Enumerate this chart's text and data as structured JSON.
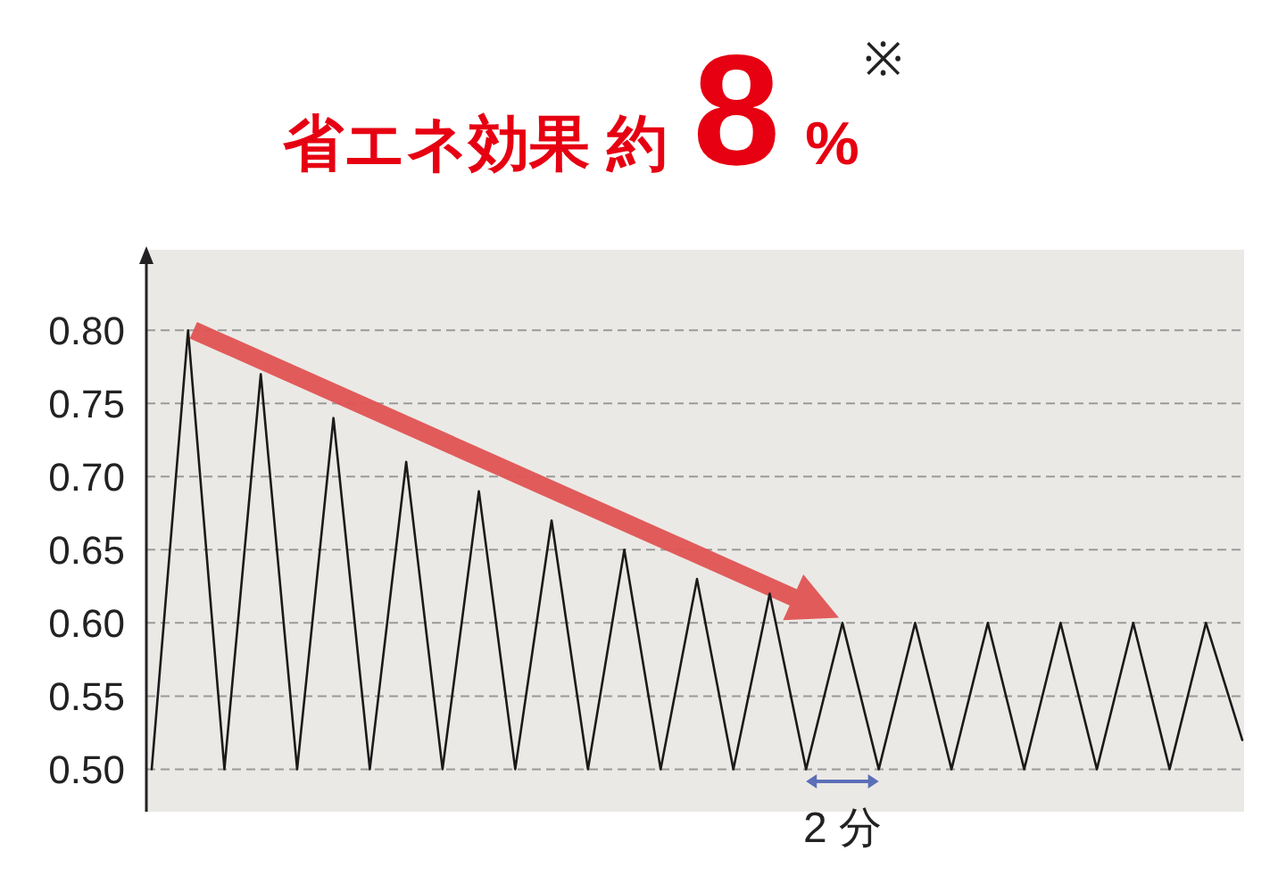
{
  "chart_data": {
    "type": "line",
    "title": "省エネ効果 約8%",
    "annotations": [
      "※",
      "2 分"
    ],
    "categories": [
      null,
      null,
      null,
      null,
      null,
      null,
      null,
      null,
      null,
      null,
      null,
      null,
      null,
      null,
      null,
      null,
      null,
      null,
      null,
      null,
      null,
      null,
      null,
      null,
      null,
      null,
      null,
      null,
      null,
      null,
      null
    ],
    "series": [
      {
        "color": "#1a1a1a",
        "values": [
          0.5,
          0.8,
          0.5,
          0.77,
          0.5,
          0.74,
          0.5,
          0.71,
          0.5,
          0.69,
          0.5,
          0.67,
          0.5,
          0.65,
          0.5,
          0.63,
          0.5,
          0.62,
          0.5,
          0.6,
          0.5,
          0.6,
          0.5,
          0.6,
          0.5,
          0.6,
          0.5,
          0.6,
          0.5,
          0.6,
          0.52
        ]
      }
    ],
    "ylim": [
      0.471,
      0.855
    ],
    "yticks": [
      {
        "value": 0.5,
        "label": "0.50"
      },
      {
        "value": 0.55,
        "label": "0.55"
      },
      {
        "value": 0.6,
        "label": "0.60"
      },
      {
        "value": 0.65,
        "label": "0.65"
      },
      {
        "value": 0.7,
        "label": "0.70"
      },
      {
        "value": 0.75,
        "label": "0.75"
      },
      {
        "value": 0.8,
        "label": "0.80"
      }
    ],
    "grid": "y",
    "tick_labels": "y",
    "line_style": "solid",
    "marker": "none"
  }
}
